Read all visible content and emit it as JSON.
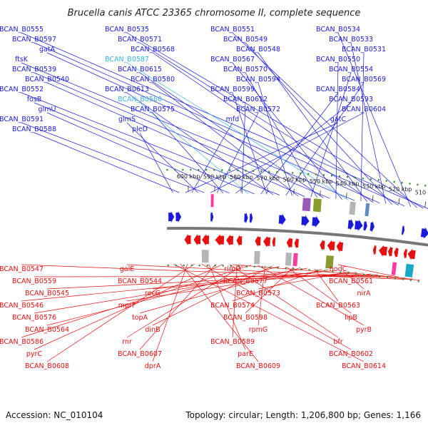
{
  "header": {
    "title": "Brucella canis ATCC 23365 chromosome II, complete sequence"
  },
  "footer": {
    "accession": "Accession: NC_010104",
    "summary": "Topology: circular; Length: 1,206,800 bp; Genes: 1,166"
  },
  "colors": {
    "forward": "#1a1adc",
    "reverse": "#e61010",
    "highlight": "#36b4e0",
    "backbone": "#777777",
    "scale": "#2a8a2a"
  },
  "ticks": [
    "510 kbp",
    "520 kbp",
    "530 kbp",
    "540 kbp",
    "550 kbp",
    "560 kbp",
    "570 kbp",
    "580 kbp",
    "590 kbp",
    "600 kbp"
  ],
  "forward_labels": [
    {
      "text": "BCAN_B0555",
      "hl": false
    },
    {
      "text": "BCAN_B0535",
      "hl": false
    },
    {
      "text": "BCAN_B0551",
      "hl": false
    },
    {
      "text": "BCAN_B0534",
      "hl": false
    },
    {
      "text": "BCAN_B0597",
      "hl": false
    },
    {
      "text": "BCAN_B0571",
      "hl": false
    },
    {
      "text": "BCAN_B0549",
      "hl": false
    },
    {
      "text": "BCAN_B0533",
      "hl": false
    },
    {
      "text": "gatA",
      "hl": false
    },
    {
      "text": "BCAN_B0568",
      "hl": false
    },
    {
      "text": "BCAN_B0548",
      "hl": false
    },
    {
      "text": "BCAN_B0531",
      "hl": false
    },
    {
      "text": "ftsK",
      "hl": false
    },
    {
      "text": "BCAN_B0587",
      "hl": true
    },
    {
      "text": "BCAN_B0567",
      "hl": false
    },
    {
      "text": "BCAN_B0550",
      "hl": false
    },
    {
      "text": "BCAN_B0539",
      "hl": false
    },
    {
      "text": "BCAN_B0615",
      "hl": false
    },
    {
      "text": "BCAN_B0570",
      "hl": false
    },
    {
      "text": "BCAN_B0554",
      "hl": false
    },
    {
      "text": "BCAN_B0540",
      "hl": false
    },
    {
      "text": "BCAN_B0580",
      "hl": false
    },
    {
      "text": "BCAN_B0594",
      "hl": false
    },
    {
      "text": "BCAN_B0569",
      "hl": false
    },
    {
      "text": "BCAN_B0552",
      "hl": false
    },
    {
      "text": "BCAN_B0613",
      "hl": false
    },
    {
      "text": "BCAN_B0599",
      "hl": false
    },
    {
      "text": "BCAN_B0584",
      "hl": false
    },
    {
      "text": "fosB",
      "hl": false
    },
    {
      "text": "BCAN_B0560",
      "hl": true
    },
    {
      "text": "BCAN_B0612",
      "hl": false
    },
    {
      "text": "BCAN_B0593",
      "hl": false
    },
    {
      "text": "glmU",
      "hl": false
    },
    {
      "text": "BCAN_B0575",
      "hl": false
    },
    {
      "text": "BCAN_B0572",
      "hl": false
    },
    {
      "text": "BCAN_B0604",
      "hl": false
    },
    {
      "text": "BCAN_B0591",
      "hl": false
    },
    {
      "text": "glmS",
      "hl": false
    },
    {
      "text": "mfd",
      "hl": false
    },
    {
      "text": "gatC",
      "hl": false
    },
    {
      "text": "BCAN_B0588",
      "hl": false
    },
    {
      "text": "pleD",
      "hl": false
    }
  ],
  "reverse_labels": [
    {
      "text": "BCAN_B0547"
    },
    {
      "text": "galE"
    },
    {
      "text": "rimO"
    },
    {
      "text": "nodC"
    },
    {
      "text": "BCAN_B0559"
    },
    {
      "text": "BCAN_B0544"
    },
    {
      "text": "BCAN_B0577"
    },
    {
      "text": "BCAN_B0561"
    },
    {
      "text": "BCAN_B0545"
    },
    {
      "text": "recG"
    },
    {
      "text": "BCAN_B0573"
    },
    {
      "text": "nirA"
    },
    {
      "text": "BCAN_B0546"
    },
    {
      "text": "mprF"
    },
    {
      "text": "BCAN_B0574"
    },
    {
      "text": "BCAN_B0563"
    },
    {
      "text": "BCAN_B0576"
    },
    {
      "text": "topA"
    },
    {
      "text": "BCAN_B0598"
    },
    {
      "text": "lipB"
    },
    {
      "text": "BCAN_B0564"
    },
    {
      "text": "dinB"
    },
    {
      "text": "rpmG"
    },
    {
      "text": "pyrB"
    },
    {
      "text": "BCAN_B0586"
    },
    {
      "text": "rnr"
    },
    {
      "text": "BCAN_B0589"
    },
    {
      "text": "bfr"
    },
    {
      "text": "pyrC"
    },
    {
      "text": "BCAN_B0607"
    },
    {
      "text": "parE"
    },
    {
      "text": "BCAN_B0602"
    },
    {
      "text": "BCAN_B0608"
    },
    {
      "text": "dprA"
    },
    {
      "text": "BCAN_B0609"
    },
    {
      "text": "BCAN_B0614"
    }
  ]
}
